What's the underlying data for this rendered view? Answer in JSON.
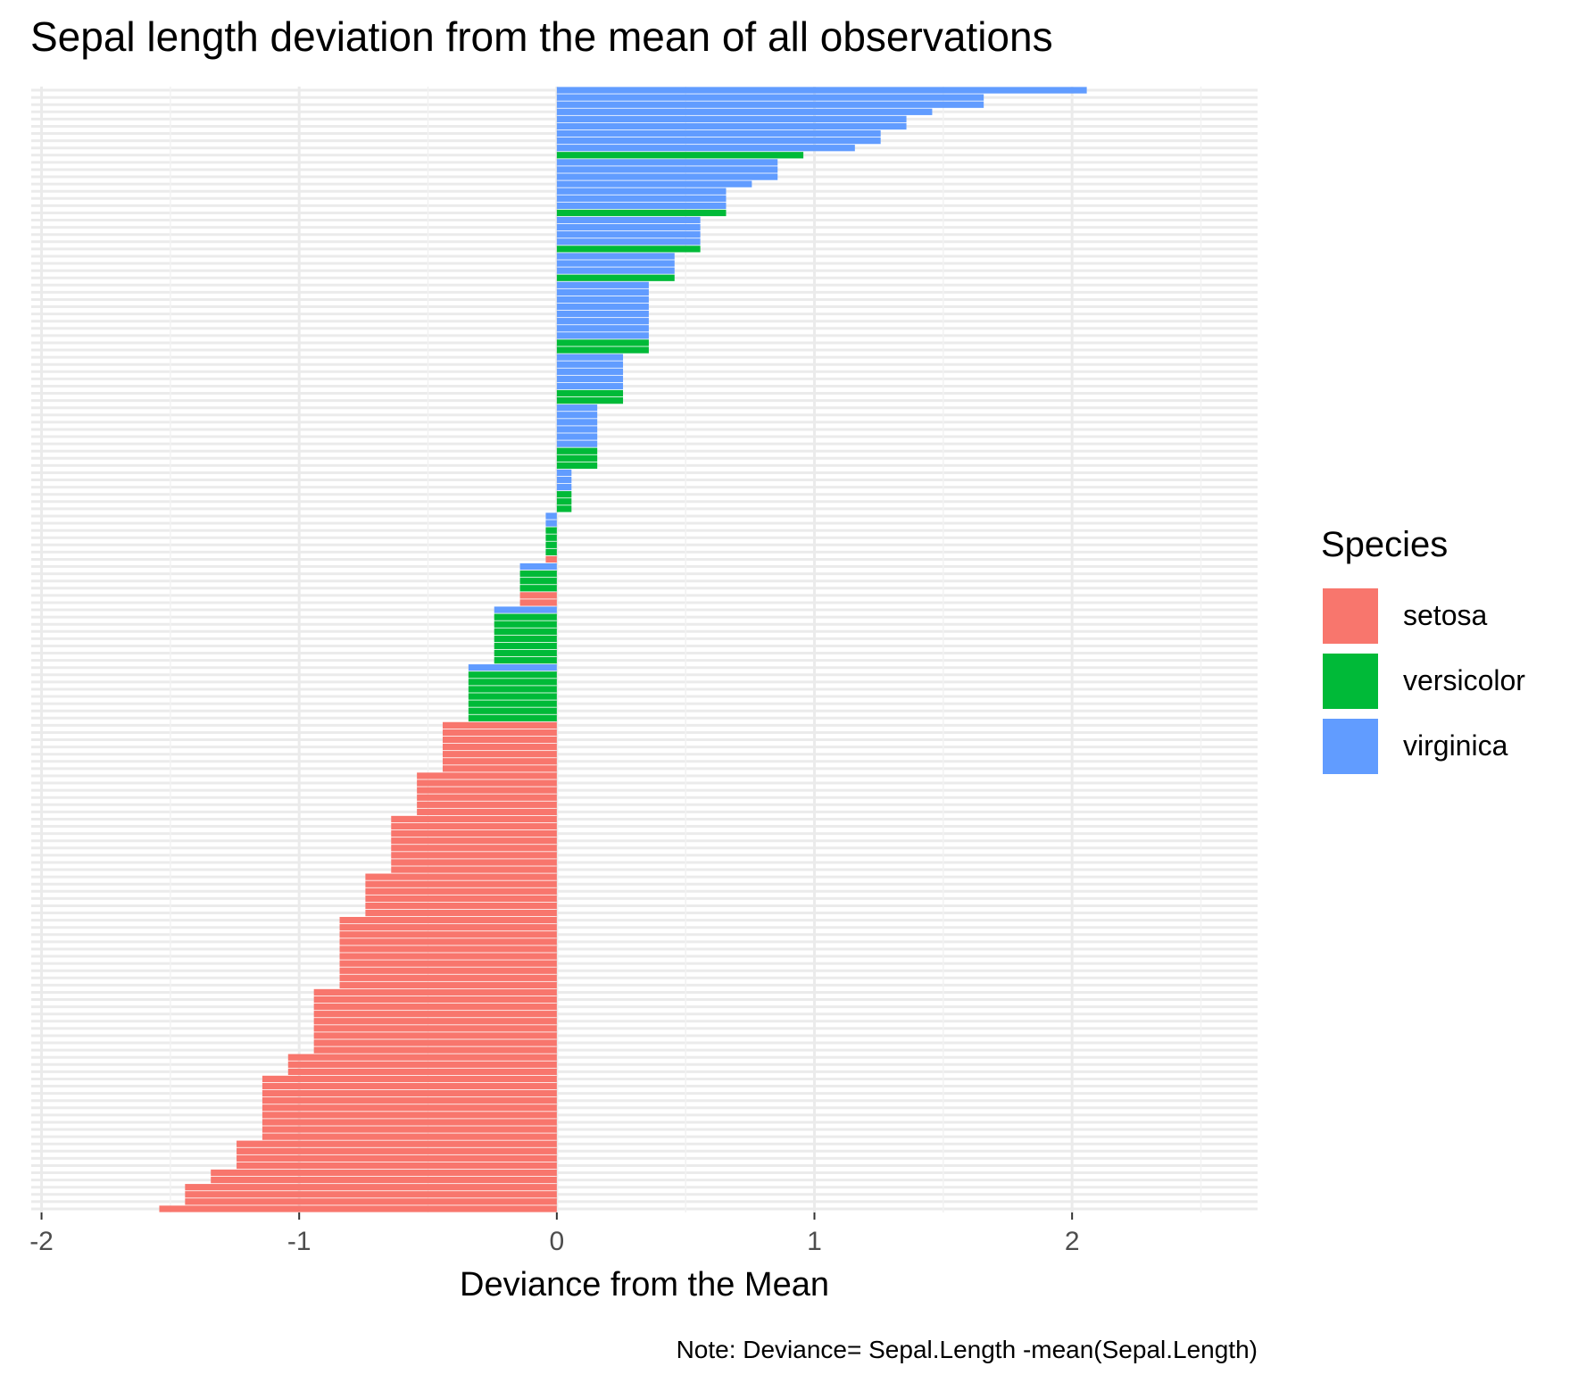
{
  "chart_data": {
    "type": "bar",
    "orientation": "horizontal",
    "title": "Sepal length deviation from the mean of all observations",
    "xlabel": "Deviance from the Mean",
    "ylabel": "",
    "caption": "Note: Deviance= Sepal.Length -mean(Sepal.Length)",
    "xlim": [
      -2.04,
      2.72
    ],
    "x_ticks": [
      -2,
      -1,
      0,
      1,
      2
    ],
    "x_tick_labels": [
      "-2",
      "-1",
      "0",
      "1",
      "2"
    ],
    "y_tick_labels_visible": false,
    "grid": true,
    "legend": {
      "title": "Species",
      "position": "right",
      "entries": [
        {
          "name": "setosa",
          "color": "#F8766D"
        },
        {
          "name": "versicolor",
          "color": "#00BA38"
        },
        {
          "name": "virginica",
          "color": "#619CFF"
        }
      ]
    },
    "bars_order": "ascending from bottom to top",
    "values": [
      -1.543,
      -1.443,
      -1.443,
      -1.443,
      -1.343,
      -1.343,
      -1.243,
      -1.243,
      -1.243,
      -1.243,
      -1.143,
      -1.143,
      -1.143,
      -1.143,
      -1.143,
      -1.143,
      -1.143,
      -1.143,
      -1.143,
      -1.043,
      -1.043,
      -1.043,
      -0.943,
      -0.943,
      -0.943,
      -0.943,
      -0.943,
      -0.943,
      -0.943,
      -0.943,
      -0.943,
      -0.843,
      -0.843,
      -0.843,
      -0.843,
      -0.843,
      -0.843,
      -0.843,
      -0.843,
      -0.843,
      -0.843,
      -0.743,
      -0.743,
      -0.743,
      -0.743,
      -0.743,
      -0.743,
      -0.643,
      -0.643,
      -0.643,
      -0.643,
      -0.643,
      -0.643,
      -0.643,
      -0.643,
      -0.543,
      -0.543,
      -0.543,
      -0.543,
      -0.543,
      -0.543,
      -0.443,
      -0.443,
      -0.443,
      -0.443,
      -0.443,
      -0.443,
      -0.443,
      -0.343,
      -0.343,
      -0.343,
      -0.343,
      -0.343,
      -0.343,
      -0.343,
      -0.343,
      -0.243,
      -0.243,
      -0.243,
      -0.243,
      -0.243,
      -0.243,
      -0.243,
      -0.243,
      -0.143,
      -0.143,
      -0.143,
      -0.143,
      -0.143,
      -0.143,
      -0.043,
      -0.043,
      -0.043,
      -0.043,
      -0.043,
      -0.043,
      -0.043,
      0.057,
      0.057,
      0.057,
      0.057,
      0.057,
      0.057,
      0.157,
      0.157,
      0.157,
      0.157,
      0.157,
      0.157,
      0.157,
      0.157,
      0.157,
      0.257,
      0.257,
      0.257,
      0.257,
      0.257,
      0.257,
      0.257,
      0.357,
      0.357,
      0.357,
      0.357,
      0.357,
      0.357,
      0.357,
      0.357,
      0.357,
      0.357,
      0.457,
      0.457,
      0.457,
      0.457,
      0.557,
      0.557,
      0.557,
      0.557,
      0.557,
      0.657,
      0.657,
      0.657,
      0.657,
      0.757,
      0.857,
      0.857,
      0.857,
      0.957,
      1.157,
      1.257,
      1.257,
      1.357,
      1.357,
      1.457,
      1.657,
      1.657,
      2.057
    ],
    "species": [
      "setosa",
      "setosa",
      "setosa",
      "setosa",
      "setosa",
      "setosa",
      "setosa",
      "setosa",
      "setosa",
      "setosa",
      "setosa",
      "setosa",
      "setosa",
      "setosa",
      "setosa",
      "setosa",
      "setosa",
      "setosa",
      "setosa",
      "setosa",
      "setosa",
      "setosa",
      "setosa",
      "setosa",
      "setosa",
      "setosa",
      "setosa",
      "setosa",
      "setosa",
      "setosa",
      "setosa",
      "setosa",
      "setosa",
      "setosa",
      "setosa",
      "setosa",
      "setosa",
      "setosa",
      "setosa",
      "setosa",
      "setosa",
      "setosa",
      "setosa",
      "setosa",
      "setosa",
      "setosa",
      "setosa",
      "setosa",
      "setosa",
      "setosa",
      "setosa",
      "setosa",
      "setosa",
      "setosa",
      "setosa",
      "setosa",
      "setosa",
      "setosa",
      "setosa",
      "setosa",
      "setosa",
      "setosa",
      "setosa",
      "setosa",
      "setosa",
      "setosa",
      "setosa",
      "setosa",
      "versicolor",
      "versicolor",
      "versicolor",
      "versicolor",
      "versicolor",
      "versicolor",
      "versicolor",
      "virginica",
      "versicolor",
      "versicolor",
      "versicolor",
      "versicolor",
      "versicolor",
      "versicolor",
      "versicolor",
      "virginica",
      "setosa",
      "setosa",
      "versicolor",
      "versicolor",
      "versicolor",
      "virginica",
      "setosa",
      "versicolor",
      "versicolor",
      "versicolor",
      "versicolor",
      "virginica",
      "virginica",
      "versicolor",
      "versicolor",
      "versicolor",
      "virginica",
      "virginica",
      "virginica",
      "versicolor",
      "versicolor",
      "versicolor",
      "virginica",
      "virginica",
      "virginica",
      "virginica",
      "virginica",
      "virginica",
      "versicolor",
      "versicolor",
      "virginica",
      "virginica",
      "virginica",
      "virginica",
      "virginica",
      "versicolor",
      "versicolor",
      "virginica",
      "virginica",
      "virginica",
      "virginica",
      "virginica",
      "virginica",
      "virginica",
      "virginica",
      "versicolor",
      "virginica",
      "virginica",
      "virginica",
      "versicolor",
      "virginica",
      "virginica",
      "virginica",
      "virginica",
      "versicolor",
      "virginica",
      "virginica",
      "virginica",
      "virginica",
      "virginica",
      "virginica",
      "virginica",
      "versicolor",
      "virginica",
      "virginica",
      "virginica",
      "virginica",
      "virginica",
      "virginica",
      "virginica",
      "virginica",
      "virginica"
    ]
  }
}
